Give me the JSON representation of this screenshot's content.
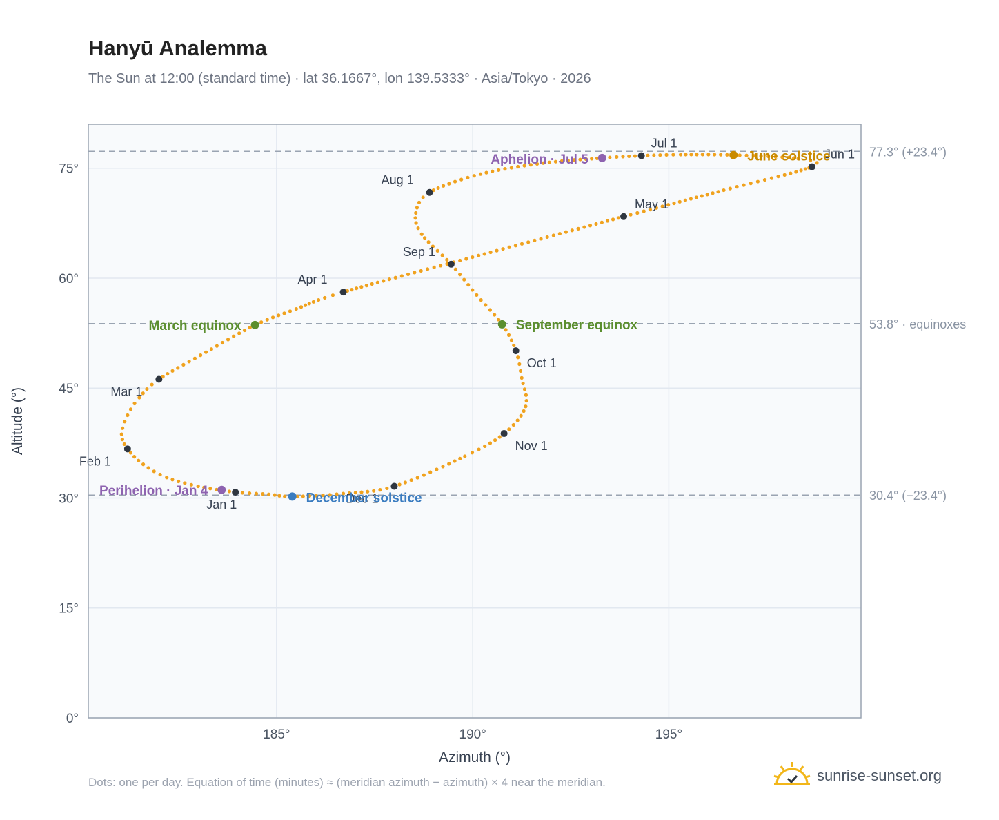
{
  "page": {
    "title": "Hanyū Analemma",
    "subtitle": "The Sun at 12:00 (standard time) · lat 36.1667°, lon 139.5333° · Asia/Tokyo · 2026",
    "footnote": "Dots: one per day. Equation of time (minutes) ≈ (meridian azimuth − azimuth) × 4 near the meridian.",
    "brand": "sunrise-sunset.org"
  },
  "colors": {
    "curve": "#f0a21e",
    "month_dot": "#2f3640",
    "equinox": "#5b8e2e",
    "june_solstice": "#c98a00",
    "december_solstice": "#3a7cc0",
    "perihelion_aphelion": "#8e63b0",
    "guide": "#9aa4b2",
    "plot_bg": "#f8fafc",
    "grid": "#e2e8f0",
    "axis": "#9aa4b2",
    "logo": "#f2b619"
  },
  "chart_data": {
    "type": "scatter",
    "title": "Hanyū Analemma",
    "xlabel": "Azimuth (°)",
    "ylabel": "Altitude (°)",
    "xlim": [
      180.2,
      199.9
    ],
    "ylim": [
      0,
      81
    ],
    "x_ticks": [
      185,
      190,
      195
    ],
    "x_tick_labels": [
      "185°",
      "190°",
      "195°"
    ],
    "y_ticks": [
      0,
      15,
      30,
      45,
      60,
      75
    ],
    "y_tick_labels": [
      "0°",
      "15°",
      "30°",
      "45°",
      "60°",
      "75°"
    ],
    "grid": true,
    "month_points": [
      {
        "label": "Jan 1",
        "az": 183.95,
        "alt": 30.8
      },
      {
        "label": "Feb 1",
        "az": 181.2,
        "alt": 36.7
      },
      {
        "label": "Mar 1",
        "az": 182.0,
        "alt": 46.2
      },
      {
        "label": "Apr 1",
        "az": 186.7,
        "alt": 58.1
      },
      {
        "label": "May 1",
        "az": 193.85,
        "alt": 68.4
      },
      {
        "label": "Jun 1",
        "az": 198.65,
        "alt": 75.2
      },
      {
        "label": "Jul 1",
        "az": 194.3,
        "alt": 76.7
      },
      {
        "label": "Aug 1",
        "az": 188.9,
        "alt": 71.7
      },
      {
        "label": "Sep 1",
        "az": 189.45,
        "alt": 61.9
      },
      {
        "label": "Oct 1",
        "az": 191.1,
        "alt": 50.1
      },
      {
        "label": "Nov 1",
        "az": 190.8,
        "alt": 38.8
      },
      {
        "label": "Dec 1",
        "az": 188.0,
        "alt": 31.6
      }
    ],
    "events": [
      {
        "label": "March equinox",
        "az": 184.45,
        "alt": 53.6,
        "kind": "equinox"
      },
      {
        "label": "September equinox",
        "az": 190.75,
        "alt": 53.7,
        "kind": "equinox"
      },
      {
        "label": "June solstice",
        "az": 196.65,
        "alt": 76.8,
        "kind": "june"
      },
      {
        "label": "December solstice",
        "az": 185.4,
        "alt": 30.2,
        "kind": "december"
      },
      {
        "label": "Perihelion · Jan 4",
        "az": 183.6,
        "alt": 31.1,
        "kind": "apsis"
      },
      {
        "label": "Aphelion · Jul 5",
        "az": 193.3,
        "alt": 76.4,
        "kind": "apsis"
      }
    ],
    "reference_lines": [
      {
        "alt": 77.3,
        "label": "77.3° (+23.4°)"
      },
      {
        "alt": 53.8,
        "label": "53.8° · equinoxes"
      },
      {
        "alt": 30.4,
        "label": "30.4° (−23.4°)"
      }
    ],
    "curve_keypoints": [
      [
        183.95,
        30.8
      ],
      [
        183.0,
        31.6
      ],
      [
        182.2,
        32.8
      ],
      [
        181.6,
        34.6
      ],
      [
        181.2,
        36.7
      ],
      [
        181.05,
        38.7
      ],
      [
        181.2,
        41.3
      ],
      [
        181.5,
        43.7
      ],
      [
        182.0,
        46.2
      ],
      [
        183.2,
        49.9
      ],
      [
        184.45,
        53.6
      ],
      [
        185.5,
        55.8
      ],
      [
        186.7,
        58.1
      ],
      [
        190.3,
        63.3
      ],
      [
        193.85,
        68.4
      ],
      [
        196.4,
        72.0
      ],
      [
        198.65,
        75.2
      ],
      [
        198.3,
        76.3
      ],
      [
        196.65,
        76.8
      ],
      [
        195.3,
        76.85
      ],
      [
        194.3,
        76.7
      ],
      [
        193.3,
        76.4
      ],
      [
        191.8,
        75.7
      ],
      [
        190.2,
        74.2
      ],
      [
        188.9,
        71.7
      ],
      [
        188.55,
        68.9
      ],
      [
        188.7,
        66.0
      ],
      [
        189.45,
        61.9
      ],
      [
        190.1,
        57.7
      ],
      [
        190.75,
        53.7
      ],
      [
        191.1,
        50.1
      ],
      [
        191.25,
        46.4
      ],
      [
        191.35,
        42.5
      ],
      [
        190.8,
        38.8
      ],
      [
        189.8,
        35.7
      ],
      [
        188.0,
        31.6
      ],
      [
        186.7,
        30.6
      ],
      [
        185.4,
        30.2
      ],
      [
        184.8,
        30.5
      ],
      [
        183.95,
        30.8
      ]
    ]
  }
}
